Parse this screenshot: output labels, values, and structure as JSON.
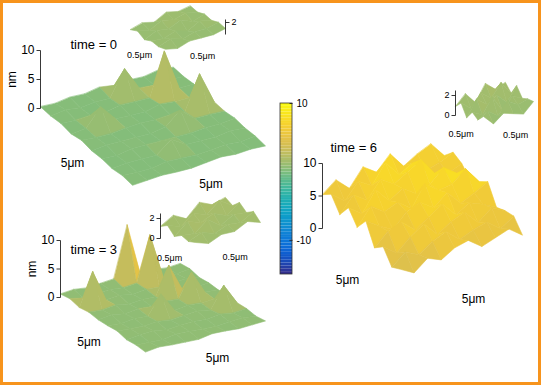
{
  "chart_data": {
    "type": "surface3d",
    "colorbar": {
      "range": [
        -15,
        10
      ],
      "ticks": [
        -10,
        10
      ]
    },
    "panels": [
      {
        "title": "time = 0",
        "zlabel": "nm",
        "xlabel": "5μm",
        "ylabel": "5μm",
        "zlim": [
          0,
          10
        ],
        "zticks": [
          0,
          5,
          10
        ],
        "z": [
          [
            0.3,
            0.1,
            0.4,
            0.2,
            0.6,
            0.2,
            0.3,
            0.1,
            0.5,
            0.2
          ],
          [
            0.2,
            0.5,
            0.1,
            0.3,
            0.2,
            4.5,
            0.4,
            0.2,
            0.3,
            0.1
          ],
          [
            0.4,
            0.2,
            0.3,
            0.1,
            0.5,
            0.3,
            0.2,
            7.5,
            0.4,
            0.3
          ],
          [
            0.1,
            0.3,
            3.2,
            0.4,
            0.2,
            0.1,
            0.6,
            0.3,
            0.2,
            0.5
          ],
          [
            0.5,
            0.2,
            0.1,
            0.3,
            0.4,
            0.2,
            0.3,
            0.1,
            5.8,
            0.2
          ],
          [
            0.2,
            0.4,
            0.3,
            0.2,
            0.1,
            0.5,
            2.6,
            0.4,
            0.3,
            0.1
          ],
          [
            0.3,
            0.1,
            0.5,
            0.4,
            0.3,
            0.2,
            0.1,
            0.3,
            0.2,
            0.4
          ],
          [
            0.1,
            0.3,
            0.2,
            0.1,
            2.1,
            0.4,
            0.3,
            0.2,
            0.5,
            0.2
          ],
          [
            0.4,
            0.2,
            0.1,
            0.5,
            0.3,
            0.1,
            0.2,
            0.4,
            0.1,
            0.3
          ],
          [
            0.2,
            0.3,
            0.4,
            0.2,
            0.1,
            0.3,
            0.5,
            0.2,
            0.3,
            0.1
          ]
        ],
        "inset": {
          "xlabel": "0.5μm",
          "ylabel": "0.5μm",
          "zlim": [
            0,
            2.5
          ],
          "zticks": [
            2
          ],
          "z": [
            [
              0.8,
              1.2,
              0.6,
              1.5,
              0.9,
              1.1
            ],
            [
              1.3,
              0.7,
              1.6,
              1.0,
              1.4,
              0.8
            ],
            [
              0.6,
              1.4,
              0.9,
              1.7,
              0.7,
              1.2
            ],
            [
              1.1,
              0.8,
              1.3,
              0.6,
              1.5,
              0.9
            ],
            [
              0.9,
              1.5,
              0.7,
              1.2,
              1.0,
              1.3
            ],
            [
              1.2,
              0.6,
              1.1,
              0.9,
              0.7,
              1.0
            ]
          ]
        }
      },
      {
        "title": "time = 3",
        "zlabel": "nm",
        "xlabel": "5μm",
        "ylabel": "5μm",
        "zlim": [
          0,
          10
        ],
        "zticks": [
          0,
          5,
          10
        ],
        "z": [
          [
            0.6,
            0.8,
            0.5,
            0.7,
            0.9,
            9.8,
            0.6,
            0.8,
            0.5,
            0.7
          ],
          [
            0.9,
            0.5,
            0.6,
            0.8,
            0.5,
            0.7,
            8.6,
            0.6,
            0.6,
            0.9
          ],
          [
            0.5,
            6.2,
            0.7,
            0.9,
            0.5,
            0.8,
            0.6,
            0.7,
            0.9,
            0.5
          ],
          [
            0.8,
            0.6,
            0.9,
            0.5,
            0.7,
            0.6,
            5.5,
            0.8,
            0.5,
            0.7
          ],
          [
            0.6,
            0.9,
            0.5,
            0.8,
            0.6,
            0.9,
            0.7,
            4.8,
            0.8,
            0.6
          ],
          [
            0.7,
            0.5,
            0.8,
            0.6,
            3.9,
            0.5,
            0.8,
            0.6,
            0.7,
            0.9
          ],
          [
            0.9,
            0.7,
            0.6,
            0.8,
            0.5,
            0.7,
            0.9,
            0.5,
            4.2,
            0.6
          ],
          [
            0.5,
            0.8,
            0.9,
            0.5,
            0.7,
            0.8,
            0.6,
            0.9,
            0.5,
            0.7
          ],
          [
            0.7,
            0.6,
            0.5,
            0.9,
            0.8,
            0.6,
            0.5,
            0.7,
            0.8,
            0.5
          ],
          [
            0.6,
            0.9,
            0.7,
            0.6,
            0.5,
            0.9,
            0.8,
            0.6,
            0.7,
            0.8
          ]
        ],
        "inset": {
          "xlabel": "0.5μm",
          "ylabel": "0.5μm",
          "zlim": [
            0,
            2.5
          ],
          "zticks": [
            0,
            2
          ],
          "z": [
            [
              1.2,
              1.8,
              1.0,
              2.1,
              1.4,
              1.6
            ],
            [
              1.7,
              1.1,
              1.9,
              1.3,
              2.2,
              1.2
            ],
            [
              1.0,
              2.0,
              1.4,
              1.8,
              1.1,
              1.9
            ],
            [
              1.5,
              1.2,
              2.1,
              1.0,
              1.6,
              1.3
            ],
            [
              1.3,
              1.7,
              1.1,
              1.5,
              1.2,
              1.8
            ],
            [
              1.6,
              1.0,
              1.4,
              1.2,
              1.7,
              1.1
            ]
          ]
        }
      },
      {
        "title": "time = 6",
        "zlabel": null,
        "xlabel": "5μm",
        "ylabel": "5μm",
        "zlim": [
          0,
          10
        ],
        "zticks": [
          0,
          5,
          10
        ],
        "z": [
          [
            5.2,
            6.8,
            4.9,
            7.5,
            6.1,
            8.2,
            5.7,
            6.9,
            7.8,
            5.4
          ],
          [
            6.5,
            4.8,
            7.2,
            5.9,
            8.8,
            6.3,
            7.4,
            5.6,
            6.2,
            7.1
          ],
          [
            4.6,
            7.0,
            5.5,
            8.1,
            6.7,
            7.9,
            9.1,
            6.4,
            5.8,
            6.6
          ],
          [
            6.9,
            5.3,
            8.4,
            6.0,
            7.3,
            5.8,
            6.6,
            8.5,
            7.0,
            5.2
          ],
          [
            5.1,
            7.7,
            6.2,
            7.0,
            5.4,
            8.6,
            6.9,
            7.2,
            8.9,
            6.3
          ],
          [
            7.3,
            5.9,
            4.7,
            6.8,
            7.6,
            6.1,
            7.8,
            5.5,
            6.4,
            7.5
          ],
          [
            4.4,
            6.3,
            7.1,
            5.2,
            6.5,
            7.9,
            5.6,
            6.8,
            5.9,
            4.8
          ],
          [
            5.8,
            4.2,
            6.0,
            7.4,
            5.1,
            6.4,
            7.2,
            5.0,
            6.6,
            5.5
          ],
          [
            3.9,
            5.6,
            4.5,
            5.9,
            6.8,
            4.9,
            5.7,
            6.3,
            4.6,
            5.9
          ],
          [
            4.8,
            3.6,
            5.2,
            4.3,
            5.5,
            6.0,
            4.4,
            5.1,
            5.8,
            4.2
          ]
        ],
        "inset": {
          "xlabel": "0.5μm",
          "ylabel": "0.5μm",
          "zlim": [
            0,
            2.5
          ],
          "zticks": [
            0,
            2
          ],
          "z": [
            [
              0.9,
              1.8,
              0.6,
              2.1,
              1.2,
              1.5
            ],
            [
              1.6,
              0.7,
              1.9,
              1.0,
              2.2,
              0.8
            ],
            [
              0.5,
              2.0,
              1.1,
              1.7,
              0.6,
              1.9
            ],
            [
              1.4,
              0.8,
              2.2,
              0.5,
              1.6,
              1.0
            ],
            [
              1.0,
              1.5,
              0.7,
              1.8,
              1.1,
              1.3
            ],
            [
              1.7,
              0.6,
              1.3,
              0.9,
              0.5,
              1.4
            ]
          ]
        }
      }
    ]
  }
}
